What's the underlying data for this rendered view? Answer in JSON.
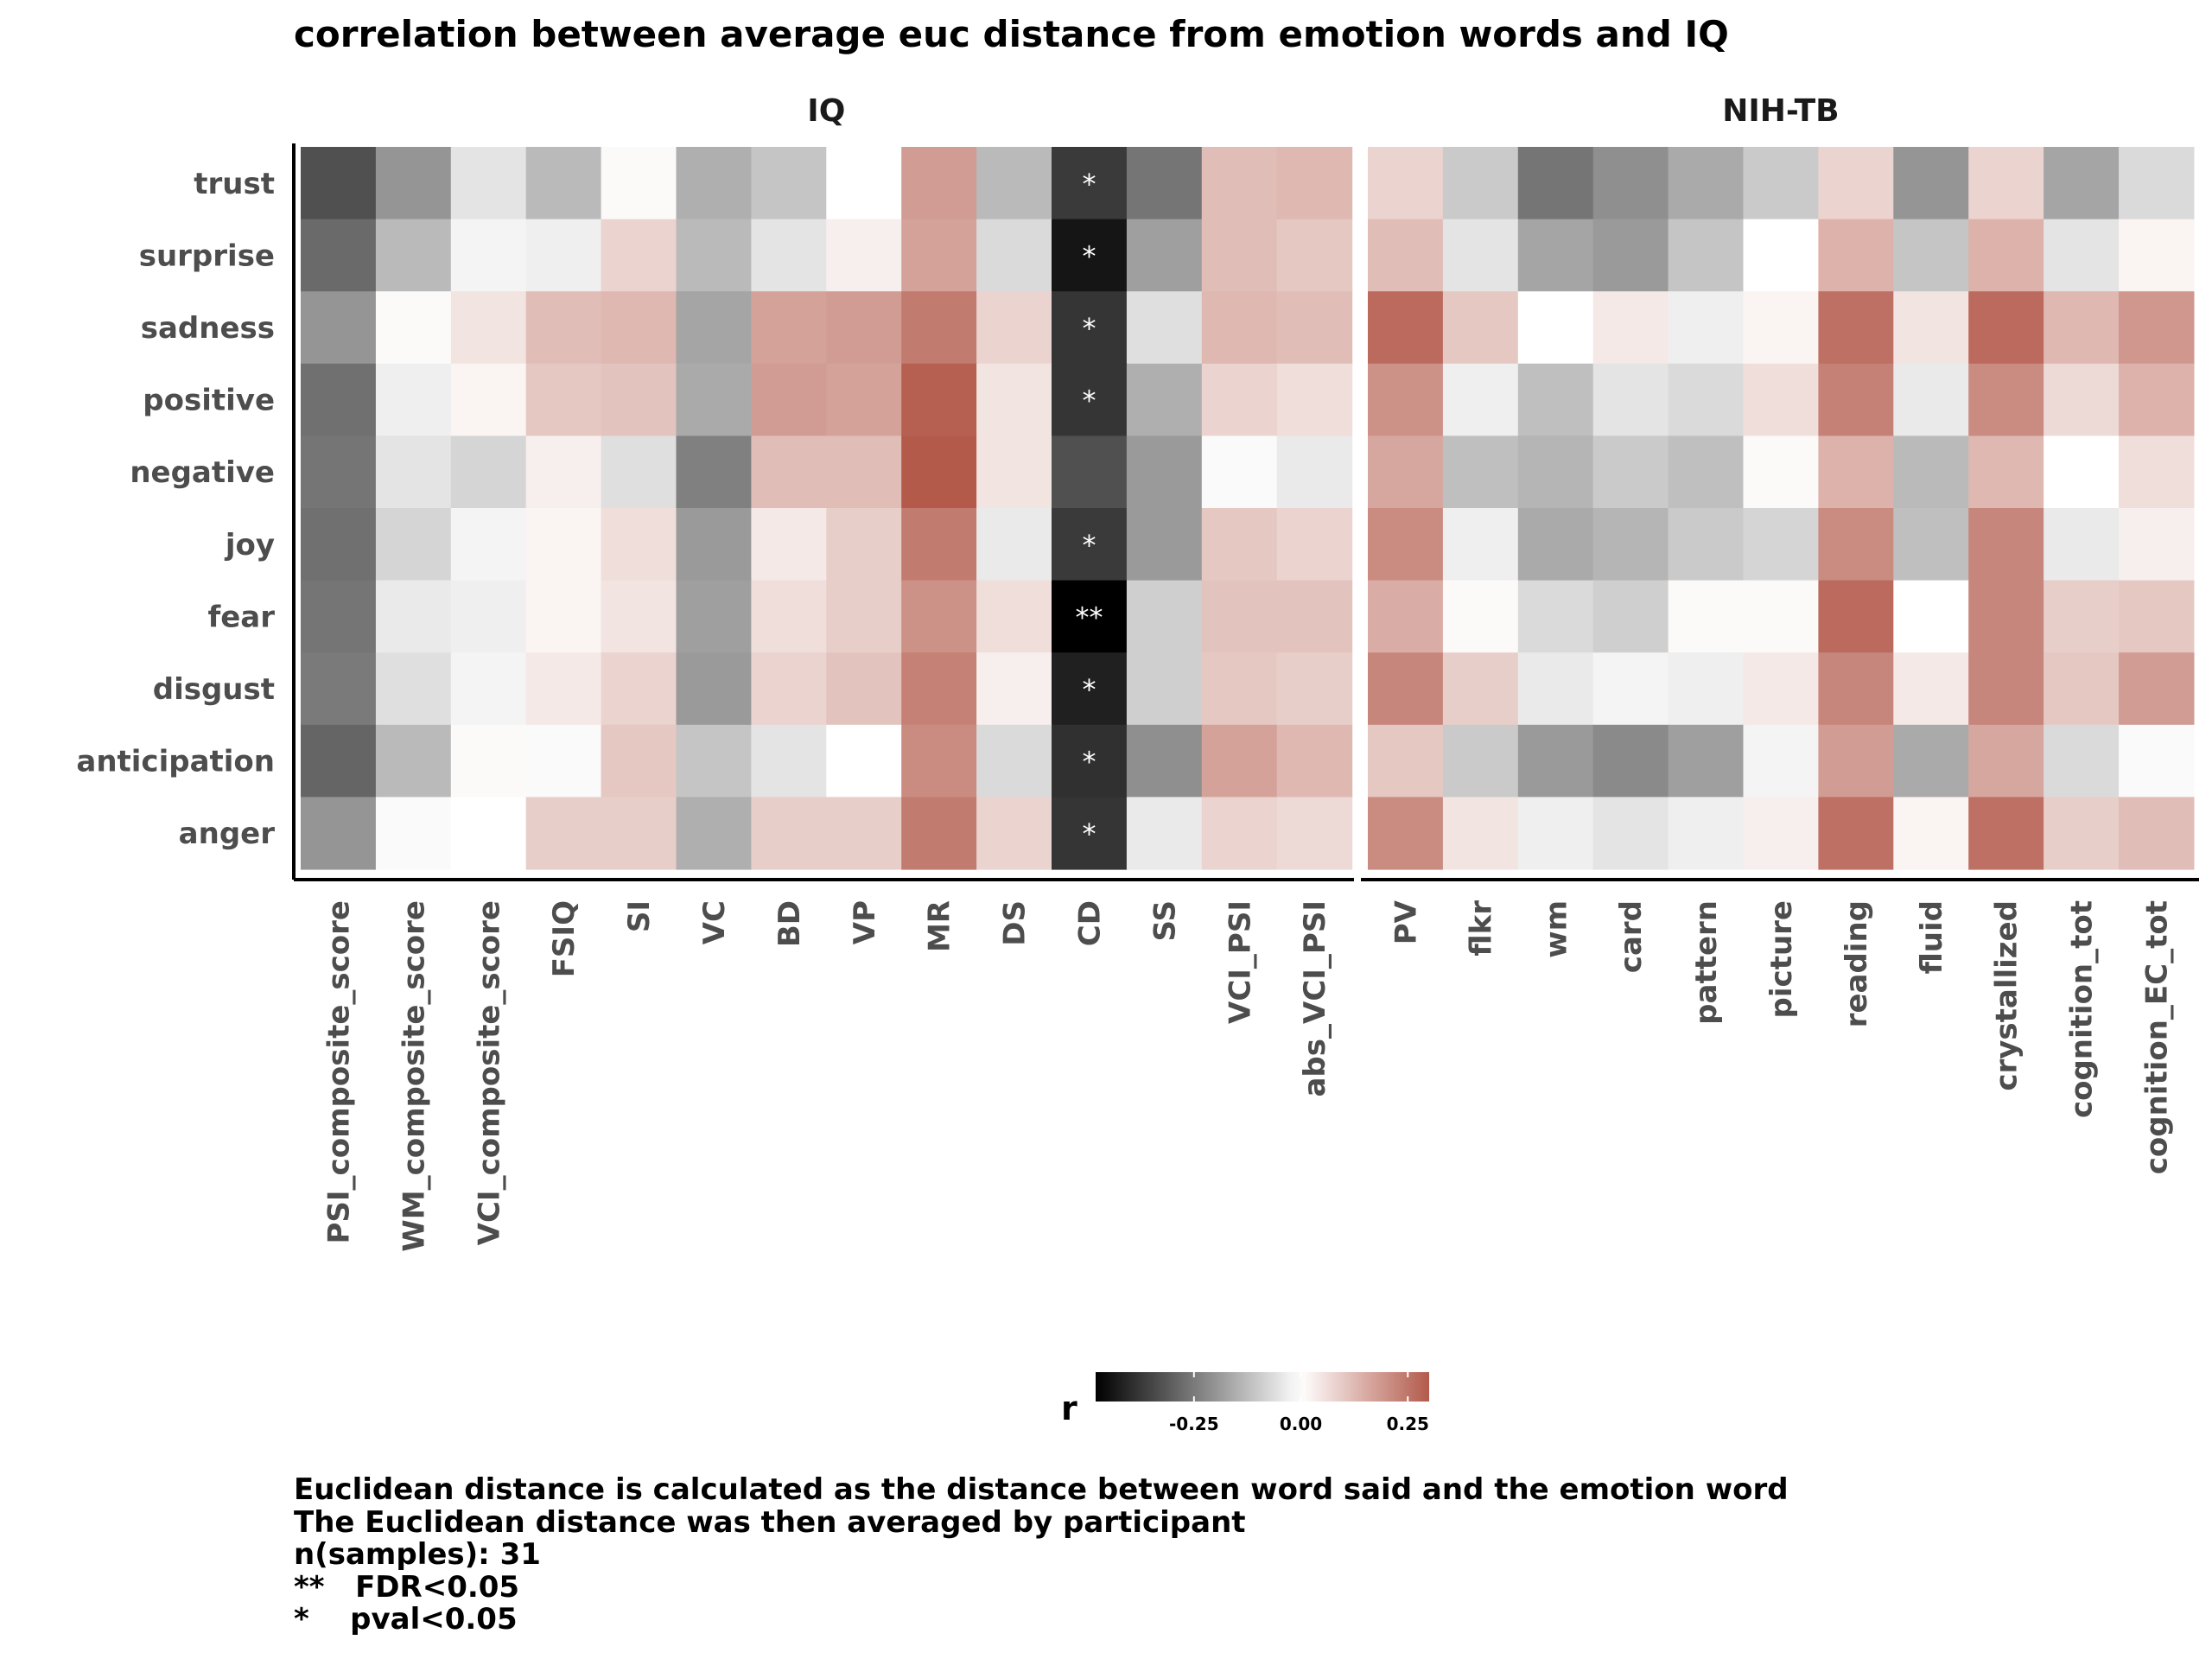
{
  "chart_data": {
    "type": "heatmap",
    "title": "correlation between average euc distance from emotion words and IQ",
    "rows": [
      "trust",
      "surprise",
      "sadness",
      "positive",
      "negative",
      "joy",
      "fear",
      "disgust",
      "anticipation",
      "anger"
    ],
    "panels": [
      {
        "name": "IQ",
        "columns": [
          "PSI_composite_score",
          "WM_composite_score",
          "VCI_composite_score",
          "FSIQ",
          "SI",
          "VC",
          "BD",
          "VP",
          "MR",
          "DS",
          "CD",
          "SS",
          "VCI_PSI",
          "abs_VCI_PSI"
        ],
        "values": [
          [
            -0.33,
            -0.2,
            -0.05,
            -0.13,
            0.01,
            -0.15,
            -0.11,
            0.0,
            0.18,
            -0.13,
            -0.37,
            -0.26,
            0.12,
            0.13
          ],
          [
            -0.28,
            -0.13,
            -0.02,
            -0.03,
            0.08,
            -0.13,
            -0.05,
            0.03,
            0.17,
            -0.07,
            -0.44,
            -0.18,
            0.12,
            0.1
          ],
          [
            -0.2,
            0.01,
            0.05,
            0.12,
            0.13,
            -0.17,
            0.17,
            0.18,
            0.24,
            0.08,
            -0.38,
            -0.06,
            0.13,
            0.12
          ],
          [
            -0.27,
            -0.03,
            0.02,
            0.1,
            0.11,
            -0.16,
            0.18,
            0.17,
            0.29,
            0.05,
            -0.38,
            -0.15,
            0.08,
            0.06
          ],
          [
            -0.26,
            -0.05,
            -0.08,
            0.03,
            -0.06,
            -0.24,
            0.12,
            0.12,
            0.3,
            0.05,
            -0.33,
            -0.19,
            -0.01,
            -0.04
          ],
          [
            -0.27,
            -0.08,
            -0.02,
            0.02,
            0.06,
            -0.19,
            0.04,
            0.09,
            0.24,
            -0.04,
            -0.37,
            -0.19,
            0.1,
            0.08
          ],
          [
            -0.26,
            -0.04,
            -0.03,
            0.02,
            0.05,
            -0.18,
            0.06,
            0.09,
            0.2,
            0.06,
            -0.48,
            -0.09,
            0.11,
            0.11
          ],
          [
            -0.25,
            -0.06,
            -0.02,
            0.04,
            0.08,
            -0.19,
            0.08,
            0.11,
            0.23,
            0.03,
            -0.42,
            -0.09,
            0.1,
            0.09
          ],
          [
            -0.29,
            -0.13,
            0.01,
            -0.01,
            0.1,
            -0.11,
            -0.05,
            0.0,
            0.21,
            -0.07,
            -0.39,
            -0.21,
            0.17,
            0.13
          ],
          [
            -0.2,
            -0.01,
            0.0,
            0.09,
            0.09,
            -0.15,
            0.09,
            0.09,
            0.24,
            0.08,
            -0.38,
            -0.04,
            0.08,
            0.07
          ]
        ],
        "significance": [
          [
            "",
            "",
            "",
            "",
            "",
            "",
            "",
            "",
            "",
            "",
            "*",
            "",
            "",
            ""
          ],
          [
            "",
            "",
            "",
            "",
            "",
            "",
            "",
            "",
            "",
            "",
            "*",
            "",
            "",
            ""
          ],
          [
            "",
            "",
            "",
            "",
            "",
            "",
            "",
            "",
            "",
            "",
            "*",
            "",
            "",
            ""
          ],
          [
            "",
            "",
            "",
            "",
            "",
            "",
            "",
            "",
            "",
            "",
            "*",
            "",
            "",
            ""
          ],
          [
            "",
            "",
            "",
            "",
            "",
            "",
            "",
            "",
            "",
            "",
            "",
            "",
            "",
            ""
          ],
          [
            "",
            "",
            "",
            "",
            "",
            "",
            "",
            "",
            "",
            "",
            "*",
            "",
            "",
            ""
          ],
          [
            "",
            "",
            "",
            "",
            "",
            "",
            "",
            "",
            "",
            "",
            "**",
            "",
            "",
            ""
          ],
          [
            "",
            "",
            "",
            "",
            "",
            "",
            "",
            "",
            "",
            "",
            "*",
            "",
            "",
            ""
          ],
          [
            "",
            "",
            "",
            "",
            "",
            "",
            "",
            "",
            "",
            "",
            "*",
            "",
            "",
            ""
          ],
          [
            "",
            "",
            "",
            "",
            "",
            "",
            "",
            "",
            "",
            "",
            "*",
            "",
            "",
            ""
          ]
        ]
      },
      {
        "name": "NIH-TB",
        "columns": [
          "PV",
          "flkr",
          "wm",
          "card",
          "pattern",
          "picture",
          "reading",
          "fluid",
          "crystallized",
          "cognition_tot",
          "cognition_EC_tot"
        ],
        "values": [
          [
            0.08,
            -0.1,
            -0.26,
            -0.21,
            -0.16,
            -0.1,
            0.08,
            -0.2,
            0.08,
            -0.17,
            -0.07
          ],
          [
            0.12,
            -0.05,
            -0.17,
            -0.19,
            -0.11,
            0.0,
            0.14,
            -0.11,
            0.14,
            -0.05,
            0.02
          ],
          [
            0.27,
            0.1,
            0.0,
            0.04,
            -0.03,
            0.02,
            0.26,
            0.05,
            0.27,
            0.13,
            0.19
          ],
          [
            0.2,
            -0.03,
            -0.12,
            -0.05,
            -0.07,
            0.06,
            0.23,
            -0.04,
            0.21,
            0.07,
            0.14
          ],
          [
            0.16,
            -0.12,
            -0.14,
            -0.1,
            -0.12,
            0.01,
            0.14,
            -0.13,
            0.13,
            0.0,
            0.06
          ],
          [
            0.21,
            -0.03,
            -0.16,
            -0.14,
            -0.1,
            -0.08,
            0.21,
            -0.12,
            0.22,
            -0.04,
            0.03
          ],
          [
            0.15,
            0.01,
            -0.07,
            -0.09,
            0.01,
            0.01,
            0.27,
            0.0,
            0.22,
            0.09,
            0.1
          ],
          [
            0.22,
            0.09,
            -0.04,
            -0.02,
            -0.03,
            0.04,
            0.22,
            0.04,
            0.22,
            0.1,
            0.18
          ],
          [
            0.1,
            -0.1,
            -0.19,
            -0.22,
            -0.18,
            -0.02,
            0.18,
            -0.16,
            0.16,
            -0.07,
            -0.01
          ],
          [
            0.21,
            0.05,
            -0.03,
            -0.05,
            -0.03,
            0.03,
            0.26,
            0.02,
            0.26,
            0.09,
            0.12
          ]
        ]
      }
    ],
    "colorscale": {
      "label": "r",
      "low_color": "#000000",
      "mid_color": "#ffffff",
      "high_color": "#b35a4b",
      "range": [
        -0.48,
        0.3
      ],
      "ticks": [
        -0.25,
        0.0,
        0.25
      ],
      "tick_labels": [
        "-0.25",
        "0.00",
        "0.25"
      ]
    },
    "legend_position": "bottom"
  },
  "caption": [
    "Euclidean distance is calculated as the distance between word said and the emotion word",
    "The Euclidean distance was then averaged by participant",
    "n(samples): 31",
    "**   FDR<0.05",
    "*    pval<0.05"
  ]
}
